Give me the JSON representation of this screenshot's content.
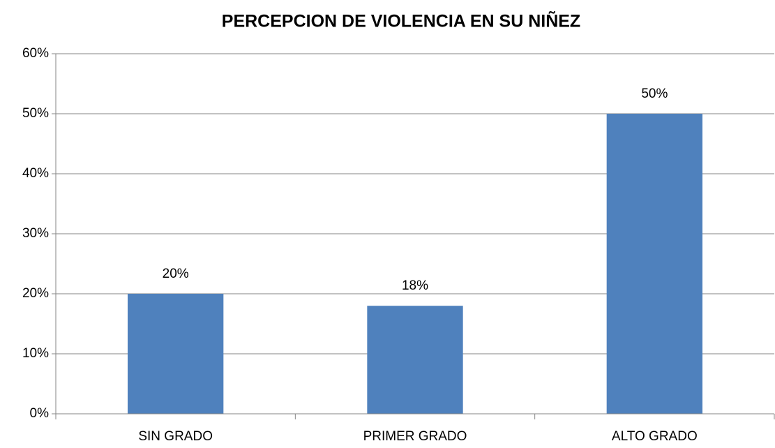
{
  "chart_data": {
    "type": "bar",
    "title": "PERCEPCION DE VIOLENCIA EN SU NIÑEZ",
    "categories": [
      "SIN GRADO",
      "PRIMER GRADO",
      "ALTO GRADO"
    ],
    "values": [
      20,
      18,
      50
    ],
    "value_labels": [
      "20%",
      "18%",
      "50%"
    ],
    "color": "#4f81bd",
    "ylim": [
      0,
      60
    ],
    "yticks": [
      {
        "value": 0,
        "label": "0%"
      },
      {
        "value": 10,
        "label": "10%"
      },
      {
        "value": 20,
        "label": "20%"
      },
      {
        "value": 30,
        "label": "30%"
      },
      {
        "value": 40,
        "label": "40%"
      },
      {
        "value": 50,
        "label": "50%"
      },
      {
        "value": 60,
        "label": "60%"
      }
    ],
    "grid": true
  }
}
